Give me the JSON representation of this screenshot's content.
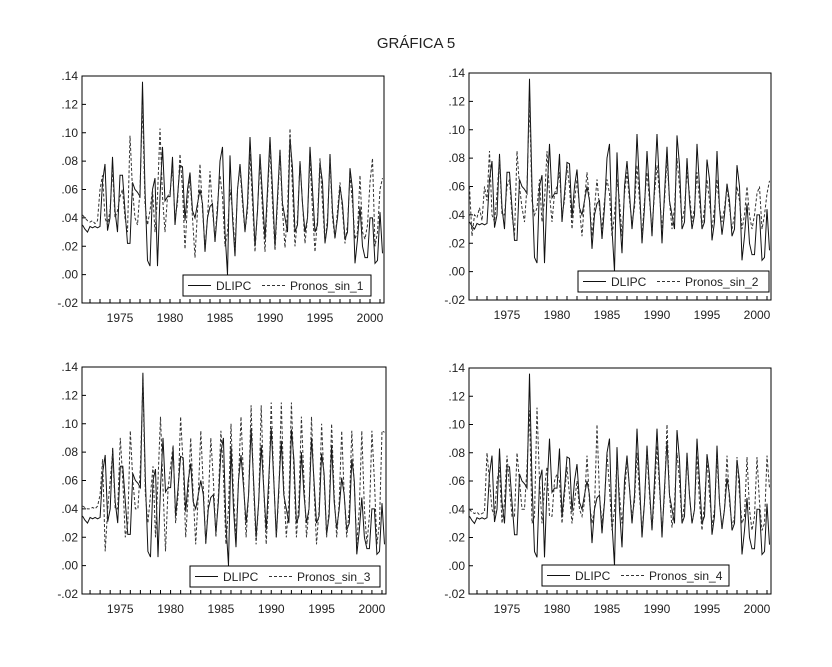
{
  "title": "GRÁFICA 5",
  "chart_data": [
    {
      "type": "line",
      "title": "",
      "x_start": 1971.25,
      "x_step": 0.25,
      "xlim": [
        1971.2,
        2001.4
      ],
      "ylim": [
        -0.02,
        0.14
      ],
      "x_ticks": [
        "1975",
        "1980",
        "1985",
        "1990",
        "1995",
        "2000"
      ],
      "y_ticks": [
        ".14",
        ".12",
        ".10",
        ".08",
        ".06",
        ".04",
        ".02",
        ".00",
        "-.02"
      ],
      "legend_position": "bottom-right",
      "series": [
        {
          "name": "DLIPC",
          "style": "solid",
          "values": "DLIPC"
        },
        {
          "name": "Pronos_sin_1",
          "style": "dashed",
          "values": [
            0.042,
            0.04,
            0.038,
            0.037,
            0.038,
            0.036,
            0.038,
            0.06,
            0.07,
            0.04,
            0.035,
            0.045,
            0.075,
            0.04,
            0.045,
            0.055,
            0.06,
            0.04,
            0.03,
            0.098,
            0.06,
            0.04,
            0.035,
            0.06,
            0.12,
            0.05,
            0.035,
            0.045,
            0.06,
            0.03,
            0.055,
            0.103,
            0.055,
            0.03,
            0.055,
            0.058,
            0.075,
            0.04,
            0.05,
            0.085,
            0.06,
            0.018,
            0.05,
            0.068,
            0.04,
            0.012,
            0.045,
            0.078,
            0.045,
            0.02,
            0.04,
            0.073,
            0.045,
            0.025,
            0.05,
            0.07,
            0.055,
            0.02,
            0.03,
            0.06,
            0.045,
            0.018,
            0.06,
            0.075,
            0.05,
            0.03,
            0.045,
            0.085,
            0.05,
            0.016,
            0.045,
            0.08,
            0.045,
            0.016,
            0.055,
            0.09,
            0.05,
            0.017,
            0.05,
            0.085,
            0.045,
            0.019,
            0.045,
            0.103,
            0.06,
            0.02,
            0.04,
            0.08,
            0.05,
            0.022,
            0.04,
            0.082,
            0.045,
            0.016,
            0.04,
            0.082,
            0.05,
            0.022,
            0.04,
            0.08,
            0.04,
            0.025,
            0.045,
            0.065,
            0.045,
            0.022,
            0.035,
            0.07,
            0.05,
            0.025,
            0.03,
            0.07,
            0.03,
            0.025,
            0.035,
            0.065,
            0.082,
            0.02,
            0.03,
            0.06,
            0.068
          ]
        }
      ]
    },
    {
      "type": "line",
      "title": "",
      "x_start": 1971.25,
      "x_step": 0.25,
      "xlim": [
        1971.2,
        2001.4
      ],
      "ylim": [
        -0.02,
        0.14
      ],
      "x_ticks": [
        "1975",
        "1980",
        "1985",
        "1990",
        "1995",
        "2000"
      ],
      "y_ticks": [
        ".14",
        ".12",
        ".10",
        ".08",
        ".06",
        ".04",
        ".02",
        ".00",
        "-.02"
      ],
      "legend_position": "bottom-right",
      "series": [
        {
          "name": "DLIPC",
          "style": "solid",
          "values": "DLIPC"
        },
        {
          "name": "Pronos_sin_2",
          "style": "dashed",
          "values": [
            0.06,
            0.025,
            0.04,
            0.038,
            0.045,
            0.036,
            0.06,
            0.05,
            0.085,
            0.04,
            0.035,
            0.055,
            0.08,
            0.04,
            0.04,
            0.06,
            0.065,
            0.04,
            0.025,
            0.085,
            0.06,
            0.045,
            0.035,
            0.06,
            0.12,
            0.05,
            0.04,
            0.045,
            0.065,
            0.035,
            0.05,
            0.085,
            0.055,
            0.035,
            0.055,
            0.06,
            0.07,
            0.04,
            0.05,
            0.075,
            0.06,
            0.03,
            0.05,
            0.065,
            0.045,
            0.025,
            0.05,
            0.07,
            0.05,
            0.025,
            0.045,
            0.065,
            0.045,
            0.03,
            0.05,
            0.065,
            0.055,
            0.025,
            0.04,
            0.065,
            0.05,
            0.025,
            0.055,
            0.07,
            0.05,
            0.035,
            0.045,
            0.075,
            0.05,
            0.025,
            0.05,
            0.07,
            0.05,
            0.03,
            0.055,
            0.075,
            0.055,
            0.03,
            0.05,
            0.08,
            0.05,
            0.03,
            0.045,
            0.08,
            0.06,
            0.035,
            0.045,
            0.07,
            0.055,
            0.035,
            0.045,
            0.07,
            0.05,
            0.03,
            0.045,
            0.065,
            0.05,
            0.03,
            0.045,
            0.065,
            0.045,
            0.035,
            0.045,
            0.06,
            0.045,
            0.03,
            0.04,
            0.06,
            0.05,
            0.03,
            0.04,
            0.06,
            0.04,
            0.03,
            0.04,
            0.055,
            0.06,
            0.03,
            0.04,
            0.055,
            0.064
          ]
        }
      ]
    },
    {
      "type": "line",
      "title": "",
      "x_start": 1971.25,
      "x_step": 0.25,
      "xlim": [
        1971.2,
        2001.4
      ],
      "ylim": [
        -0.02,
        0.14
      ],
      "x_ticks": [
        "1975",
        "1980",
        "1985",
        "1990",
        "1995",
        "2000"
      ],
      "y_ticks": [
        ".14",
        ".12",
        ".10",
        ".08",
        ".06",
        ".04",
        ".02",
        ".00",
        "-.02"
      ],
      "legend_position": "bottom-right",
      "series": [
        {
          "name": "DLIPC",
          "style": "solid",
          "values": "DLIPC"
        },
        {
          "name": "Pronos_sin_3",
          "style": "dashed",
          "values": [
            0.042,
            0.041,
            0.04,
            0.04,
            0.041,
            0.04,
            0.042,
            0.05,
            0.075,
            0.01,
            0.04,
            0.06,
            0.08,
            0.04,
            0.04,
            0.09,
            0.06,
            0.02,
            0.03,
            0.095,
            0.06,
            0.04,
            0.04,
            0.07,
            0.13,
            0.05,
            0.03,
            0.05,
            0.07,
            0.02,
            0.06,
            0.105,
            0.055,
            0.01,
            0.055,
            0.07,
            0.085,
            0.03,
            0.05,
            0.105,
            0.07,
            0.02,
            0.05,
            0.09,
            0.05,
            0.015,
            0.05,
            0.095,
            0.055,
            0.015,
            0.045,
            0.09,
            0.06,
            0.02,
            0.05,
            0.095,
            0.065,
            0.015,
            0.04,
            0.1,
            0.05,
            0.02,
            0.06,
            0.105,
            0.06,
            0.02,
            0.05,
            0.113,
            0.055,
            0.015,
            0.045,
            0.113,
            0.055,
            0.015,
            0.05,
            0.115,
            0.06,
            0.02,
            0.05,
            0.115,
            0.055,
            0.02,
            0.045,
            0.115,
            0.065,
            0.02,
            0.045,
            0.105,
            0.06,
            0.02,
            0.04,
            0.105,
            0.055,
            0.015,
            0.04,
            0.1,
            0.06,
            0.02,
            0.04,
            0.1,
            0.05,
            0.02,
            0.045,
            0.095,
            0.05,
            0.02,
            0.04,
            0.095,
            0.055,
            0.015,
            0.04,
            0.095,
            0.04,
            0.015,
            0.035,
            0.095,
            0.06,
            0.015,
            0.03,
            0.095,
            0.094
          ]
        }
      ]
    },
    {
      "type": "line",
      "title": "",
      "x_start": 1971.25,
      "x_step": 0.25,
      "xlim": [
        1971.2,
        2001.4
      ],
      "ylim": [
        -0.02,
        0.14
      ],
      "x_ticks": [
        "1975",
        "1980",
        "1985",
        "1990",
        "1995",
        "2000"
      ],
      "y_ticks": [
        ".14",
        ".12",
        ".10",
        ".08",
        ".06",
        ".04",
        ".02",
        ".00",
        "-.02"
      ],
      "legend_position": "bottom-right",
      "series": [
        {
          "name": "DLIPC",
          "style": "solid",
          "values": "DLIPC"
        },
        {
          "name": "Pronos_sin_4",
          "style": "dashed",
          "values": [
            0.04,
            0.038,
            0.037,
            0.038,
            0.036,
            0.037,
            0.038,
            0.08,
            0.06,
            0.04,
            0.035,
            0.06,
            0.07,
            0.03,
            0.045,
            0.078,
            0.055,
            0.035,
            0.035,
            0.08,
            0.06,
            0.04,
            0.04,
            0.07,
            0.11,
            0.03,
            0.035,
            0.112,
            0.06,
            0.03,
            0.055,
            0.07,
            0.035,
            0.035,
            0.06,
            0.065,
            0.06,
            0.03,
            0.05,
            0.07,
            0.05,
            0.03,
            0.045,
            0.06,
            0.04,
            0.035,
            0.045,
            0.078,
            0.045,
            0.03,
            0.04,
            0.1,
            0.05,
            0.03,
            0.045,
            0.08,
            0.055,
            0.025,
            0.04,
            0.075,
            0.05,
            0.03,
            0.05,
            0.075,
            0.055,
            0.035,
            0.045,
            0.08,
            0.05,
            0.025,
            0.045,
            0.08,
            0.05,
            0.025,
            0.05,
            0.085,
            0.055,
            0.025,
            0.05,
            0.1,
            0.05,
            0.027,
            0.045,
            0.08,
            0.06,
            0.03,
            0.045,
            0.075,
            0.05,
            0.03,
            0.04,
            0.078,
            0.045,
            0.025,
            0.045,
            0.075,
            0.05,
            0.028,
            0.04,
            0.077,
            0.045,
            0.028,
            0.04,
            0.078,
            0.045,
            0.028,
            0.035,
            0.077,
            0.05,
            0.03,
            0.035,
            0.077,
            0.04,
            0.025,
            0.035,
            0.077,
            0.045,
            0.025,
            0.03,
            0.078,
            0.055
          ]
        }
      ]
    }
  ],
  "DLIPC": [
    0.035,
    0.032,
    0.03,
    0.034,
    0.033,
    0.034,
    0.033,
    0.034,
    0.065,
    0.078,
    0.031,
    0.04,
    0.083,
    0.045,
    0.03,
    0.07,
    0.07,
    0.045,
    0.022,
    0.022,
    0.065,
    0.06,
    0.058,
    0.055,
    0.136,
    0.06,
    0.01,
    0.006,
    0.06,
    0.068,
    0.006,
    0.055,
    0.09,
    0.052,
    0.055,
    0.055,
    0.083,
    0.035,
    0.055,
    0.077,
    0.076,
    0.038,
    0.06,
    0.072,
    0.045,
    0.04,
    0.05,
    0.06,
    0.05,
    0.016,
    0.04,
    0.048,
    0.05,
    0.023,
    0.045,
    0.08,
    0.09,
    0.03,
    0.0,
    0.084,
    0.04,
    0.013,
    0.06,
    0.078,
    0.055,
    0.03,
    0.05,
    0.097,
    0.06,
    0.02,
    0.045,
    0.085,
    0.055,
    0.025,
    0.06,
    0.097,
    0.06,
    0.02,
    0.055,
    0.088,
    0.05,
    0.04,
    0.03,
    0.096,
    0.075,
    0.03,
    0.035,
    0.08,
    0.05,
    0.03,
    0.04,
    0.09,
    0.06,
    0.03,
    0.035,
    0.079,
    0.065,
    0.022,
    0.035,
    0.085,
    0.045,
    0.026,
    0.04,
    0.062,
    0.05,
    0.025,
    0.03,
    0.075,
    0.06,
    0.008,
    0.025,
    0.048,
    0.02,
    0.012,
    0.012,
    0.04,
    0.04,
    0.008,
    0.01,
    0.044,
    0.015
  ],
  "colors": {
    "axis": "#000000",
    "dlipc": "#111111",
    "forecast": "#333333",
    "background": "#ffffff"
  }
}
